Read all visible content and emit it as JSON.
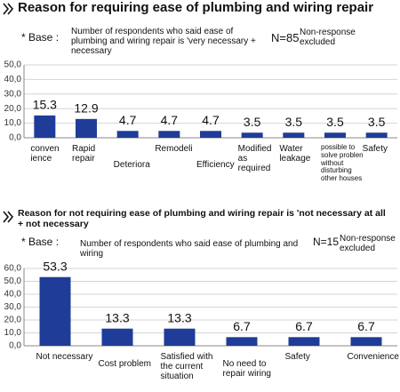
{
  "chart_data": [
    {
      "type": "bar",
      "title": "Reason for requiring ease of plumbing and wiring repair",
      "base_label": "* Base :",
      "base": "Number of respondents who said ease of plumbing and wiring repair is 'very necessary + necessary",
      "n": "N=85",
      "note": "Non-response\nexcluded",
      "categories": [
        "conven\nience",
        "Rapid\nrepair",
        "Deteriora",
        "Remodeli",
        "Efficiency",
        "Modified\nas\nrequired",
        "Water\nleakage",
        "possible to\nsolve problen\nwithout\ndisturbing\nother houses",
        "Safety"
      ],
      "values": [
        15.3,
        12.9,
        4.7,
        4.7,
        4.7,
        3.5,
        3.5,
        3.5,
        3.5
      ],
      "color": "#1f3c98",
      "ylim": [
        0,
        50
      ],
      "yticks": [
        {
          "value": 0,
          "label": "0,0"
        },
        {
          "value": 10,
          "label": "10,0"
        },
        {
          "value": 20,
          "label": "20,0"
        },
        {
          "value": 30,
          "label": "30,0"
        },
        {
          "value": 40,
          "label": "40,0"
        },
        {
          "value": 50,
          "label": "50,0"
        }
      ],
      "grid": true
    },
    {
      "type": "bar",
      "title": "Reason for not requiring ease of plumbing and wiring repair is 'not necessary at all + not necessary",
      "base_label": "* Base :",
      "base": "Number of respondents who said ease of plumbing and wiring",
      "n": "N=15",
      "note": "Non-response\nexcluded",
      "categories": [
        "Not necessary",
        "Cost problem",
        "Satisfied with\nthe current\nsituation",
        "No need to\nrepair wiring",
        "Safety",
        "Convenience"
      ],
      "values": [
        53.3,
        13.3,
        13.3,
        6.7,
        6.7,
        6.7
      ],
      "color": "#1f3c98",
      "ylim": [
        0,
        60
      ],
      "yticks": [
        {
          "value": 0,
          "label": "0,0"
        },
        {
          "value": 10,
          "label": "10,0"
        },
        {
          "value": 20,
          "label": "20,0"
        },
        {
          "value": 30,
          "label": "30,0"
        },
        {
          "value": 40,
          "label": "40,0"
        },
        {
          "value": 50,
          "label": "50,0"
        },
        {
          "value": 60,
          "label": "60,0"
        }
      ],
      "grid": true
    }
  ]
}
